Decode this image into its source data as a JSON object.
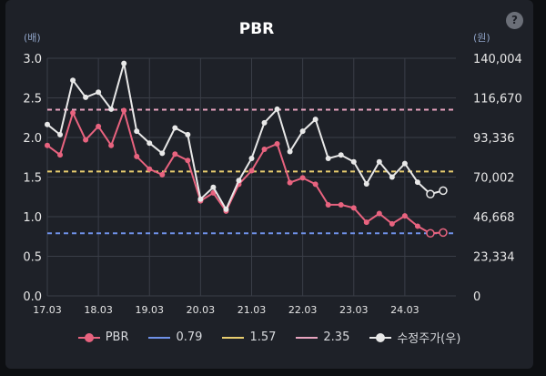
{
  "title": "PBR",
  "help_label": "?",
  "chart_data": {
    "type": "line",
    "title": "PBR",
    "left_axis": {
      "unit_label": "(배)",
      "ticks": [
        "3.0",
        "2.5",
        "2.0",
        "1.5",
        "1.0",
        "0.5",
        "0.0"
      ],
      "min": 0,
      "max": 3.0
    },
    "right_axis": {
      "unit_label": "(원)",
      "ticks": [
        "140,004",
        "116,670",
        "93,336",
        "70,002",
        "46,668",
        "23,334",
        "0"
      ],
      "min": 0,
      "max": 140004
    },
    "x_ticks": [
      "17.03",
      "18.03",
      "19.03",
      "20.03",
      "21.03",
      "22.03",
      "23.03",
      "24.03"
    ],
    "x_range": [
      2017.17,
      2025.17
    ],
    "series": [
      {
        "name": "PBR",
        "axis": "left",
        "color": "#e8637f",
        "points": [
          [
            2017.17,
            1.9
          ],
          [
            2017.42,
            1.78
          ],
          [
            2017.67,
            2.31
          ],
          [
            2017.92,
            1.97
          ],
          [
            2018.17,
            2.14
          ],
          [
            2018.42,
            1.9
          ],
          [
            2018.67,
            2.34
          ],
          [
            2018.92,
            1.76
          ],
          [
            2019.17,
            1.6
          ],
          [
            2019.42,
            1.53
          ],
          [
            2019.67,
            1.79
          ],
          [
            2019.92,
            1.71
          ],
          [
            2020.17,
            1.2
          ],
          [
            2020.42,
            1.3
          ],
          [
            2020.67,
            1.07
          ],
          [
            2020.92,
            1.41
          ],
          [
            2021.17,
            1.58
          ],
          [
            2021.42,
            1.85
          ],
          [
            2021.67,
            1.92
          ],
          [
            2021.92,
            1.43
          ],
          [
            2022.17,
            1.49
          ],
          [
            2022.42,
            1.41
          ],
          [
            2022.67,
            1.15
          ],
          [
            2022.92,
            1.15
          ],
          [
            2023.17,
            1.11
          ],
          [
            2023.42,
            0.93
          ],
          [
            2023.67,
            1.04
          ],
          [
            2023.92,
            0.91
          ],
          [
            2024.17,
            1.01
          ],
          [
            2024.42,
            0.88
          ],
          [
            2024.67,
            0.79
          ],
          [
            2024.92,
            0.8
          ]
        ]
      },
      {
        "name": "0.79",
        "axis": "left",
        "color": "#6f91e8",
        "dashed": true,
        "value": 0.79
      },
      {
        "name": "1.57",
        "axis": "left",
        "color": "#e8cd6f",
        "dashed": true,
        "value": 1.57
      },
      {
        "name": "2.35",
        "axis": "left",
        "color": "#e8a4bf",
        "dashed": true,
        "value": 2.35
      },
      {
        "name": "수정주가(우)",
        "axis": "right",
        "color": "#e8e8e8",
        "points": [
          [
            2017.17,
            101000
          ],
          [
            2017.42,
            95000
          ],
          [
            2017.67,
            127000
          ],
          [
            2017.92,
            117000
          ],
          [
            2018.17,
            120000
          ],
          [
            2018.42,
            110000
          ],
          [
            2018.67,
            137000
          ],
          [
            2018.92,
            97000
          ],
          [
            2019.17,
            90000
          ],
          [
            2019.42,
            84000
          ],
          [
            2019.67,
            99000
          ],
          [
            2019.92,
            95000
          ],
          [
            2020.17,
            57000
          ],
          [
            2020.42,
            64000
          ],
          [
            2020.67,
            51000
          ],
          [
            2020.92,
            68000
          ],
          [
            2021.17,
            81000
          ],
          [
            2021.42,
            102000
          ],
          [
            2021.67,
            110000
          ],
          [
            2021.92,
            85000
          ],
          [
            2022.17,
            97000
          ],
          [
            2022.42,
            104000
          ],
          [
            2022.67,
            81000
          ],
          [
            2022.92,
            83000
          ],
          [
            2023.17,
            79000
          ],
          [
            2023.42,
            66000
          ],
          [
            2023.67,
            79000
          ],
          [
            2023.92,
            70000
          ],
          [
            2024.17,
            78000
          ],
          [
            2024.42,
            67000
          ],
          [
            2024.67,
            60000
          ],
          [
            2024.92,
            62000
          ]
        ]
      }
    ],
    "legend_position": "bottom",
    "grid": true
  },
  "legend": [
    {
      "label": "PBR",
      "color": "#e8637f",
      "kind": "dot-line"
    },
    {
      "label": "0.79",
      "color": "#6f91e8",
      "kind": "line"
    },
    {
      "label": "1.57",
      "color": "#e8cd6f",
      "kind": "line"
    },
    {
      "label": "2.35",
      "color": "#e8a4bf",
      "kind": "line"
    },
    {
      "label": "수정주가(우)",
      "color": "#e8e8e8",
      "kind": "dot-line"
    }
  ]
}
